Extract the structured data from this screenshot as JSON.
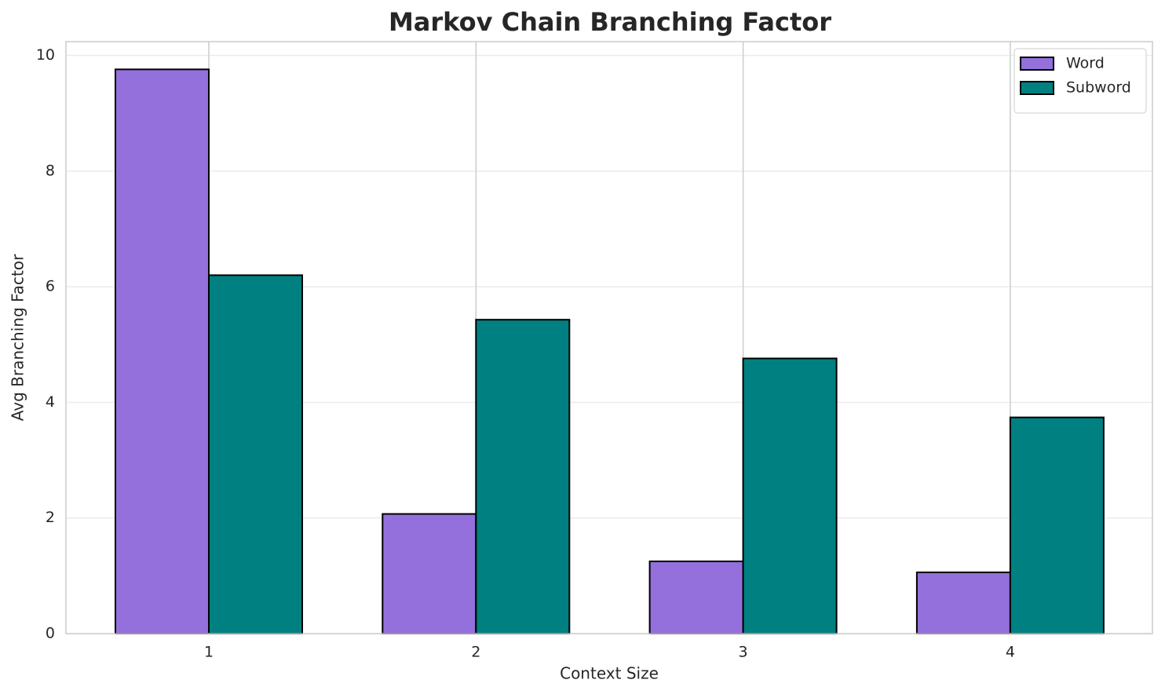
{
  "chart_data": {
    "type": "bar",
    "title": "Markov Chain Branching Factor",
    "xlabel": "Context Size",
    "ylabel": "Avg Branching Factor",
    "categories": [
      "1",
      "2",
      "3",
      "4"
    ],
    "series": [
      {
        "name": "Word",
        "color": "#9370db",
        "values": [
          9.76,
          2.07,
          1.25,
          1.06
        ]
      },
      {
        "name": "Subword",
        "color": "#008080",
        "values": [
          6.2,
          5.43,
          4.76,
          3.74
        ]
      }
    ],
    "ylim": [
      0,
      10.24
    ],
    "yticks": [
      0,
      2,
      4,
      6,
      8,
      10
    ],
    "grid": true,
    "legend": "upper right"
  }
}
